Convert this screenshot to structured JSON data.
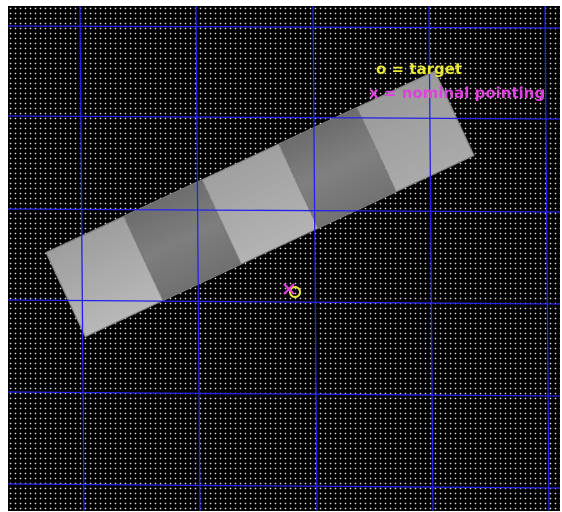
{
  "legend": {
    "target_text": "o = target",
    "target_color": "#e8e838",
    "pointing_text": "x = nominal pointing",
    "pointing_color": "#e040e0"
  },
  "colors": {
    "background": "#000000",
    "grid": "#2222ee"
  },
  "markers": [
    {
      "symbol": "x",
      "meaning": "nominal pointing",
      "icon": "x-marker-icon",
      "color": "#e040e0"
    },
    {
      "symbol": "o",
      "meaning": "target",
      "icon": "circle-marker-icon",
      "color": "#e8e838"
    }
  ],
  "footprint": {
    "detector_count": 5,
    "orientation": "rotated counter-clockwise"
  }
}
